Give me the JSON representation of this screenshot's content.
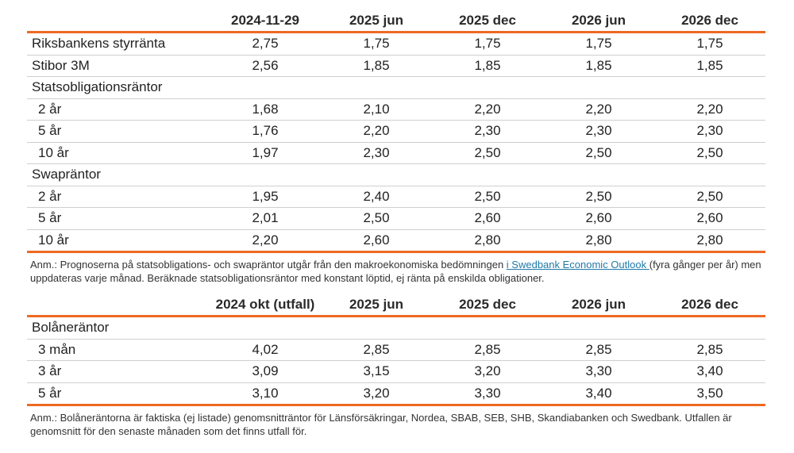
{
  "table1": {
    "headers": [
      "",
      "2024-11-29",
      "2025 jun",
      "2025 dec",
      "2026 jun",
      "2026 dec"
    ],
    "rows": [
      {
        "label": "Riksbankens styrränta",
        "values": [
          "2,75",
          "1,75",
          "1,75",
          "1,75",
          "1,75"
        ]
      },
      {
        "label": "Stibor 3M",
        "values": [
          "2,56",
          "1,85",
          "1,85",
          "1,85",
          "1,85"
        ]
      },
      {
        "label": "Statsobligationsräntor",
        "values": [
          "",
          "",
          "",
          "",
          ""
        ]
      },
      {
        "label": "2 år",
        "values": [
          "1,68",
          "2,10",
          "2,20",
          "2,20",
          "2,20"
        ]
      },
      {
        "label": "5 år",
        "values": [
          "1,76",
          "2,20",
          "2,30",
          "2,30",
          "2,30"
        ]
      },
      {
        "label": "10 år",
        "values": [
          "1,97",
          "2,30",
          "2,50",
          "2,50",
          "2,50"
        ]
      },
      {
        "label": "Swapräntor",
        "values": [
          "",
          "",
          "",
          "",
          ""
        ]
      },
      {
        "label": "2 år",
        "values": [
          "1,95",
          "2,40",
          "2,50",
          "2,50",
          "2,50"
        ]
      },
      {
        "label": "5 år",
        "values": [
          "2,01",
          "2,50",
          "2,60",
          "2,60",
          "2,60"
        ]
      },
      {
        "label": "10 år",
        "values": [
          "2,20",
          "2,60",
          "2,80",
          "2,80",
          "2,80"
        ]
      }
    ],
    "note": {
      "before_link": "Anm.: Prognoserna på statsobligations- och swapräntor utgår från den makroekonomiska bedömningen ",
      "link": "i Swedbank Economic Outlook ",
      "after_link": "(fyra gånger per år) men uppdateras varje månad. Beräknade statsobligationsräntor med konstant löptid, ej ränta på enskilda obligationer."
    }
  },
  "table2": {
    "headers": [
      "",
      "2024 okt (utfall)",
      "2025 jun",
      "2025 dec",
      "2026 jun",
      "2026 dec"
    ],
    "rows": [
      {
        "label": "Bolåneräntor",
        "values": [
          "",
          "",
          "",
          "",
          ""
        ]
      },
      {
        "label": "3 mån",
        "values": [
          "4,02",
          "2,85",
          "2,85",
          "2,85",
          "2,85"
        ]
      },
      {
        "label": "3 år",
        "values": [
          "3,09",
          "3,15",
          "3,20",
          "3,30",
          "3,40"
        ]
      },
      {
        "label": "5 år",
        "values": [
          "3,10",
          "3,20",
          "3,30",
          "3,40",
          "3,50"
        ]
      }
    ],
    "note": "Anm.: Bolåneräntorna är faktiska (ej listade) genomsnitträntor för Länsförsäkringar, Nordea, SBAB, SEB, SHB, Skandiabanken och Swedbank. Utfallen är genomsnitt för den senaste månaden som det finns utfall för."
  },
  "colors": {
    "accent": "#ee6a24",
    "link": "#1f7aa8"
  }
}
